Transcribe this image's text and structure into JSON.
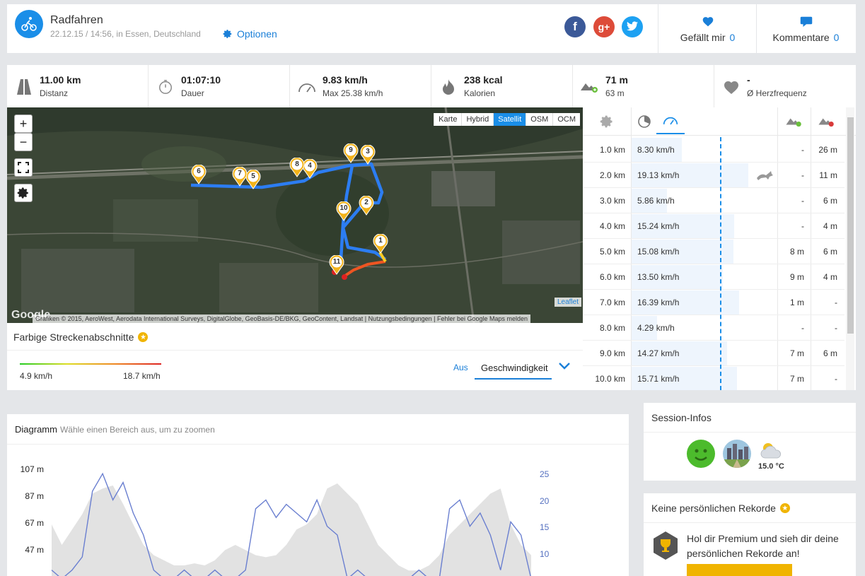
{
  "header": {
    "title": "Radfahren",
    "subtitle": "22.12.15 / 14:56, in Essen, Deutschland",
    "options_label": "Optionen",
    "like_label": "Gefällt mir",
    "like_count": "0",
    "comments_label": "Kommentare",
    "comments_count": "0",
    "social": [
      {
        "name": "facebook",
        "glyph": "f",
        "color": "#3b5998"
      },
      {
        "name": "google-plus",
        "glyph": "g+",
        "color": "#dd4b39"
      },
      {
        "name": "twitter",
        "glyph": "t",
        "color": "#1da1f2"
      }
    ]
  },
  "stats": [
    {
      "icon": "road-icon",
      "value": "11.00 km",
      "label": "Distanz"
    },
    {
      "icon": "stopwatch-icon",
      "value": "01:07:10",
      "label": "Dauer"
    },
    {
      "icon": "speedometer-icon",
      "value": "9.83 km/h",
      "label": "Max 25.38 km/h"
    },
    {
      "icon": "flame-icon",
      "value": "238 kcal",
      "label": "Kalorien"
    },
    {
      "icon": "elevation-icon",
      "value": "71 m",
      "label": "63 m"
    },
    {
      "icon": "heart-icon",
      "value": "-",
      "label": "Ø Herzfrequenz"
    }
  ],
  "map": {
    "layers": [
      "Karte",
      "Hybrid",
      "Satellit",
      "OSM",
      "OCM"
    ],
    "active_layer": "Satellit",
    "zoom_in": "+",
    "zoom_out": "−",
    "leaflet": "Leaflet",
    "attribution": "Grafiken © 2015, AeroWest, Aerodata International Surveys, DigitalGlobe, GeoBasis-DE/BKG, GeoContent, Landsat",
    "terms": "Nutzungsbedingungen",
    "report": "Fehler bei Google Maps melden",
    "google": "Google",
    "markers": [
      "1",
      "2",
      "3",
      "4",
      "5",
      "6",
      "7",
      "8",
      "9",
      "10",
      "11"
    ]
  },
  "segments": {
    "title": "Farbige Streckenabschnitte",
    "min": "4.9 km/h",
    "max": "18.7 km/h",
    "off_label": "Aus",
    "selected": "Geschwindigkeit"
  },
  "km_table": {
    "rows": [
      {
        "km": "1.0 km",
        "speed": "8.30 km/h",
        "ratio": 0.43,
        "up": "-",
        "down": "26 m"
      },
      {
        "km": "2.0 km",
        "speed": "19.13 km/h",
        "ratio": 1.0,
        "up": "-",
        "down": "11 m"
      },
      {
        "km": "3.0 km",
        "speed": "5.86 km/h",
        "ratio": 0.3,
        "up": "-",
        "down": "6 m"
      },
      {
        "km": "4.0 km",
        "speed": "15.24 km/h",
        "ratio": 0.88,
        "up": "-",
        "down": "4 m"
      },
      {
        "km": "5.0 km",
        "speed": "15.08 km/h",
        "ratio": 0.87,
        "up": "8 m",
        "down": "6 m"
      },
      {
        "km": "6.0 km",
        "speed": "13.50 km/h",
        "ratio": 0.78,
        "up": "9 m",
        "down": "4 m"
      },
      {
        "km": "7.0 km",
        "speed": "16.39 km/h",
        "ratio": 0.92,
        "up": "1 m",
        "down": "-"
      },
      {
        "km": "8.0 km",
        "speed": "4.29 km/h",
        "ratio": 0.22,
        "up": "-",
        "down": "-"
      },
      {
        "km": "9.0 km",
        "speed": "14.27 km/h",
        "ratio": 0.82,
        "up": "7 m",
        "down": "6 m"
      },
      {
        "km": "10.0 km",
        "speed": "15.71 km/h",
        "ratio": 0.9,
        "up": "7 m",
        "down": "-"
      }
    ]
  },
  "diagram": {
    "title": "Diagramm",
    "hint": "Wähle einen Bereich aus, um zu zoomen",
    "chart_data": {
      "type": "line",
      "y_left_ticks": [
        "107 m",
        "87 m",
        "67 m",
        "47 m"
      ],
      "y_right_ticks": [
        "25",
        "20",
        "15",
        "10"
      ],
      "series": [
        {
          "values": [
            60,
            40,
            55,
            70,
            90,
            95,
            98,
            80,
            60,
            40,
            30,
            25,
            20,
            20,
            22,
            20,
            25,
            35,
            40,
            35,
            30,
            28,
            30,
            40,
            55,
            60,
            70,
            95,
            100,
            90,
            80,
            60,
            40,
            30,
            20,
            15,
            15,
            20,
            30,
            50,
            60,
            70,
            80,
            90,
            95,
            60,
            40,
            30
          ]
        },
        {
          "values": [
            2,
            0,
            2,
            5,
            20,
            24,
            18,
            22,
            15,
            10,
            2,
            0,
            0,
            2,
            0,
            0,
            2,
            0,
            0,
            2,
            16,
            18,
            14,
            17,
            15,
            13,
            18,
            12,
            10,
            0,
            2,
            0,
            0,
            0,
            0,
            0,
            2,
            0,
            0,
            16,
            18,
            12,
            15,
            10,
            2,
            13,
            10,
            0
          ]
        }
      ]
    }
  },
  "session": {
    "title": "Session-Infos",
    "temperature": "15.0 °C"
  },
  "records": {
    "title": "Keine persönlichen Rekorde",
    "text": "Hol dir Premium und sieh dir deine persönlichen Rekorde an!"
  }
}
